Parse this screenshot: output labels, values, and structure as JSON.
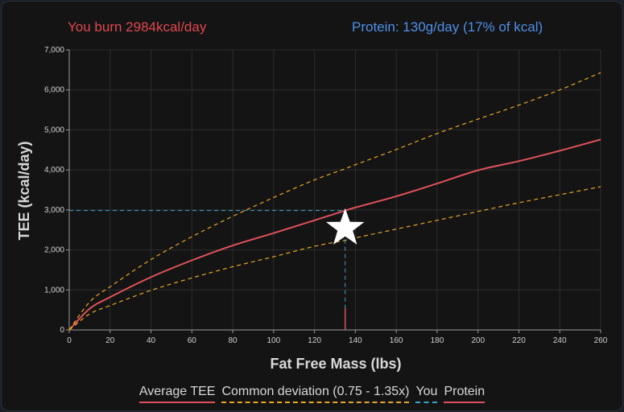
{
  "header": {
    "burn_text": "You burn 2984kcal/day",
    "protein_text": "Protein: 130g/day (17% of kcal)"
  },
  "colors": {
    "average": "#e0525a",
    "deviation": "#e8a626",
    "you": "#3aa3c8",
    "protein": "#e0525a",
    "burn_text": "#e0474f",
    "protein_text": "#4f8fe8",
    "grid": "#2e2e2e",
    "axis": "#9a9a9a"
  },
  "chart_data": {
    "type": "line",
    "xlabel": "Fat Free Mass (lbs)",
    "ylabel": "TEE (kcal/day)",
    "xlim": [
      0,
      260
    ],
    "ylim": [
      0,
      7000
    ],
    "x_ticks": [
      "0",
      "20",
      "40",
      "60",
      "80",
      "100",
      "120",
      "140",
      "160",
      "180",
      "200",
      "220",
      "240",
      "260"
    ],
    "y_ticks": [
      "0",
      "1,000",
      "2,000",
      "3,000",
      "4,000",
      "5,000",
      "6,000",
      "7,000"
    ],
    "grid": true,
    "legend_position": "bottom",
    "series": [
      {
        "name": "Average TEE",
        "style": "solid",
        "x": [
          0,
          10,
          20,
          40,
          60,
          80,
          100,
          120,
          135,
          140,
          160,
          180,
          200,
          220,
          240,
          260
        ],
        "y": [
          0,
          530,
          820,
          1320,
          1740,
          2110,
          2420,
          2740,
          2984,
          3060,
          3340,
          3660,
          3990,
          4220,
          4480,
          4760
        ]
      },
      {
        "name": "Common deviation (0.75 - 1.35x)",
        "style": "dashed",
        "x": [
          0,
          10,
          20,
          40,
          60,
          80,
          100,
          120,
          135,
          140,
          160,
          180,
          200,
          220,
          240,
          260
        ],
        "y": [
          0,
          700,
          1080,
          1760,
          2330,
          2840,
          3310,
          3750,
          4030,
          4130,
          4510,
          4910,
          5270,
          5620,
          6000,
          6430
        ]
      },
      {
        "name": "Common deviation (0.75 - 1.35x)",
        "style": "dashed",
        "x": [
          0,
          10,
          20,
          40,
          60,
          80,
          100,
          120,
          135,
          140,
          160,
          180,
          200,
          220,
          240,
          260
        ],
        "y": [
          0,
          400,
          610,
          990,
          1300,
          1580,
          1830,
          2090,
          2240,
          2300,
          2520,
          2740,
          2960,
          3180,
          3380,
          3580
        ]
      }
    ],
    "you_point": {
      "x": 135,
      "y": 2984
    },
    "protein_marker": {
      "x": 135,
      "y_from": 0,
      "y_to": 550
    }
  },
  "legend": {
    "items": [
      {
        "label": "Average TEE",
        "style": "solid",
        "color_key": "average"
      },
      {
        "label": "Common deviation (0.75 - 1.35x)",
        "style": "dashed",
        "color_key": "deviation"
      },
      {
        "label": "You",
        "style": "dashed",
        "color_key": "you"
      },
      {
        "label": "Protein",
        "style": "solid",
        "color_key": "protein"
      }
    ]
  }
}
